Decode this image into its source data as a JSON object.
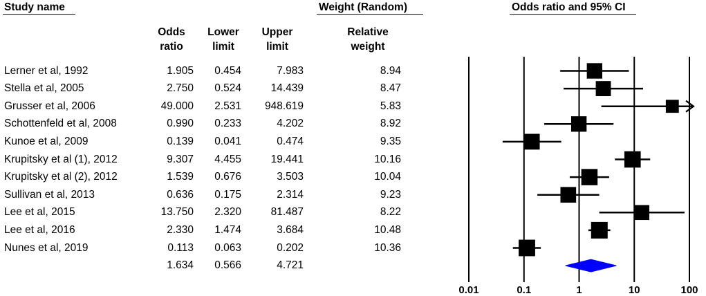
{
  "headers": {
    "study": "Study name",
    "weight_group": "Weight (Random)",
    "plot_title": "Odds ratio and 95% CI"
  },
  "columns": {
    "odds_ratio": [
      "Odds",
      "ratio"
    ],
    "lower_limit": [
      "Lower",
      "limit"
    ],
    "upper_limit": [
      "Upper",
      "limit"
    ],
    "relative_weight": [
      "Relative",
      "weight"
    ]
  },
  "chart_data": {
    "type": "forest",
    "title": "Odds ratio and 95% CI",
    "x_scale": "log",
    "xlim": [
      0.01,
      100
    ],
    "x_ticks": [
      "0.01",
      "0.1",
      "1",
      "10",
      "100"
    ],
    "studies": [
      {
        "name": "Lerner et al, 1992",
        "or": "1.905",
        "lower": "0.454",
        "upper": "7.983",
        "weight": "8.94"
      },
      {
        "name": "Stella et al, 2005",
        "or": "2.750",
        "lower": "0.524",
        "upper": "14.439",
        "weight": "8.47"
      },
      {
        "name": "Grusser et al, 2006",
        "or": "49.000",
        "lower": "2.531",
        "upper": "948.619",
        "weight": "5.83",
        "arrow": "right"
      },
      {
        "name": "Schottenfeld et al, 2008",
        "or": "0.990",
        "lower": "0.233",
        "upper": "4.202",
        "weight": "8.92"
      },
      {
        "name": "Kunoe et al, 2009",
        "or": "0.139",
        "lower": "0.041",
        "upper": "0.474",
        "weight": "9.35"
      },
      {
        "name": "Krupitsky et al (1), 2012",
        "or": "9.307",
        "lower": "4.455",
        "upper": "19.441",
        "weight": "10.16"
      },
      {
        "name": "Krupitsky et al (2), 2012",
        "or": "1.539",
        "lower": "0.676",
        "upper": "3.503",
        "weight": "10.04"
      },
      {
        "name": "Sullivan et al, 2013",
        "or": "0.636",
        "lower": "0.175",
        "upper": "2.314",
        "weight": "9.23"
      },
      {
        "name": "Lee et al, 2015",
        "or": "13.750",
        "lower": "2.320",
        "upper": "81.487",
        "weight": "8.22"
      },
      {
        "name": "Lee et al, 2016",
        "or": "2.330",
        "lower": "1.474",
        "upper": "3.684",
        "weight": "10.48"
      },
      {
        "name": "Nunes et al, 2019",
        "or": "0.113",
        "lower": "0.063",
        "upper": "0.202",
        "weight": "10.36"
      }
    ],
    "summary": {
      "or": "1.634",
      "lower": "0.566",
      "upper": "4.721",
      "color": "#0000ff"
    }
  }
}
